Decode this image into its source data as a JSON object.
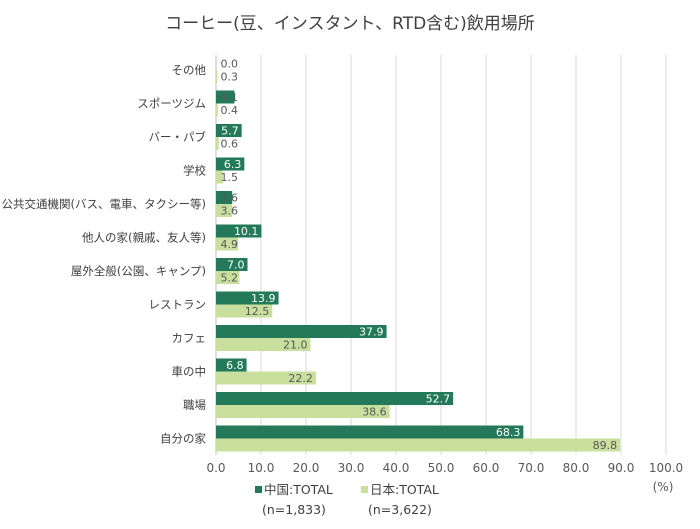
{
  "chart_data": {
    "type": "bar",
    "orientation": "horizontal",
    "title": "コーヒー(豆、インスタント、RTD含む)飲用場所",
    "categories": [
      "その他",
      "スポーツジム",
      "バー・パブ",
      "学校",
      "公共交通機関(バス、電車、タクシー等)",
      "他人の家(親戚、友人等)",
      "屋外全般(公園、キャンプ)",
      "レストラン",
      "カフェ",
      "車の中",
      "職場",
      "自分の家"
    ],
    "series": [
      {
        "name": "中国:TOTAL",
        "sample": "(n=1,833)",
        "color": "#23795a",
        "values": [
          0.0,
          4.1,
          5.7,
          6.3,
          3.6,
          10.1,
          7.0,
          13.9,
          37.9,
          6.8,
          52.7,
          68.3
        ]
      },
      {
        "name": "日本:TOTAL",
        "sample": "(n=3,622)",
        "color": "#c8df9e",
        "values": [
          0.3,
          0.4,
          0.6,
          1.5,
          3.6,
          4.9,
          5.2,
          12.5,
          21.0,
          22.2,
          38.6,
          89.8
        ]
      }
    ],
    "xlim": [
      0,
      100
    ],
    "xticks": [
      "0.0",
      "10.0",
      "20.0",
      "30.0",
      "40.0",
      "50.0",
      "60.0",
      "70.0",
      "80.0",
      "90.0",
      "100.0"
    ],
    "unit_label": "(%)",
    "grid": "vertical",
    "legend": "bottom"
  }
}
